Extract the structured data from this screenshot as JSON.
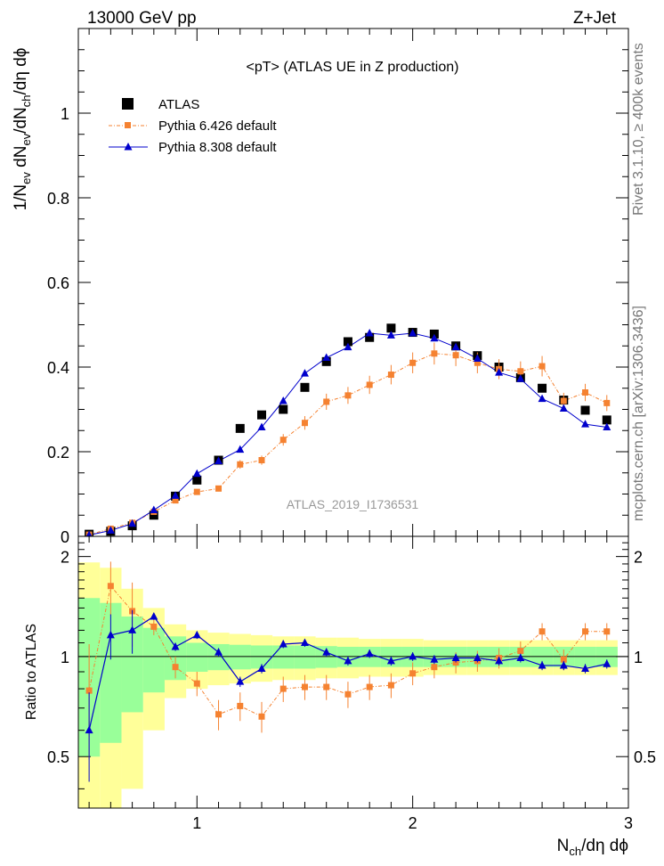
{
  "header": {
    "left": "13000 GeV pp",
    "right": "Z+Jet"
  },
  "side_labels": {
    "top": "Rivet 3.1.10, ≥ 400k events",
    "bottom": "mcplots.cern.ch [arXiv:1306.3436]"
  },
  "watermark": "ATLAS_2019_I1736531",
  "colors": {
    "atlas": "#000000",
    "py6": "#f58231",
    "py8": "#0000cc",
    "band_inner": "#99ff99",
    "band_outer": "#ffff99"
  },
  "chart_data": [
    {
      "type": "scatter",
      "title": "<pT> (ATLAS UE in Z production)",
      "ylabel": {
        "p1": "1/N",
        "s1": "ev",
        "p2": " dN",
        "s2": "ev",
        "p3": "/dN",
        "s3": "ch",
        "p4": "/dη dϕ"
      },
      "xlim": [
        0.45,
        3.0
      ],
      "ylim": [
        0,
        1.2
      ],
      "xticks": [
        1,
        2,
        3
      ],
      "yticks": [
        0,
        0.2,
        0.4,
        0.6,
        0.8,
        1
      ],
      "ytick_labels": [
        "0",
        "0.2",
        "0.4",
        "0.6",
        "0.8",
        "1"
      ],
      "legend_position": "top-left",
      "x": [
        0.5,
        0.6,
        0.7,
        0.8,
        0.9,
        1.0,
        1.1,
        1.2,
        1.3,
        1.4,
        1.5,
        1.6,
        1.7,
        1.8,
        1.9,
        2.0,
        2.1,
        2.2,
        2.3,
        2.4,
        2.5,
        2.6,
        2.7,
        2.8,
        2.9
      ],
      "series": [
        {
          "name": "ATLAS",
          "marker": "square",
          "values": [
            0.005,
            0.012,
            0.025,
            0.05,
            0.095,
            0.133,
            0.18,
            0.255,
            0.287,
            0.3,
            0.352,
            0.413,
            0.46,
            0.47,
            0.492,
            0.482,
            0.478,
            0.45,
            0.427,
            0.4,
            0.375,
            0.35,
            0.322,
            0.298,
            0.275
          ]
        },
        {
          "name": "Pythia 6.426 default",
          "marker": "small-square",
          "values": [
            0.004,
            0.018,
            0.032,
            0.058,
            0.085,
            0.105,
            0.113,
            0.17,
            0.18,
            0.228,
            0.268,
            0.318,
            0.333,
            0.358,
            0.382,
            0.41,
            0.432,
            0.428,
            0.41,
            0.395,
            0.39,
            0.402,
            0.32,
            0.34,
            0.315
          ]
        },
        {
          "name": "Pythia 8.308 default",
          "marker": "triangle",
          "values": [
            0.003,
            0.014,
            0.03,
            0.062,
            0.096,
            0.148,
            0.178,
            0.205,
            0.258,
            0.32,
            0.385,
            0.422,
            0.447,
            0.48,
            0.475,
            0.48,
            0.468,
            0.447,
            0.42,
            0.387,
            0.372,
            0.325,
            0.302,
            0.265,
            0.258
          ]
        }
      ]
    },
    {
      "type": "scatter",
      "ylabel": "Ratio to ATLAS",
      "xlabel": {
        "p1": "N",
        "s1": "ch",
        "p2": "/dη dϕ"
      },
      "xlim": [
        0.45,
        3.0
      ],
      "ylim": [
        0.35,
        2.3
      ],
      "xticks": [
        1,
        2,
        3
      ],
      "yticks": [
        0.5,
        1,
        2
      ],
      "ytick_labels": [
        "0.5",
        "1",
        "2"
      ],
      "x": [
        0.5,
        0.6,
        0.7,
        0.8,
        0.9,
        1.0,
        1.1,
        1.2,
        1.3,
        1.4,
        1.5,
        1.6,
        1.7,
        1.8,
        1.9,
        2.0,
        2.1,
        2.2,
        2.3,
        2.4,
        2.5,
        2.6,
        2.7,
        2.8,
        2.9
      ],
      "band_inner": [
        0.5,
        0.45,
        0.32,
        0.22,
        0.15,
        0.1,
        0.09,
        0.085,
        0.08,
        0.08,
        0.08,
        0.075,
        0.07,
        0.07,
        0.07,
        0.07,
        0.07,
        0.07,
        0.07,
        0.07,
        0.07,
        0.07,
        0.07,
        0.07,
        0.07
      ],
      "band_outer": [
        0.92,
        0.85,
        0.6,
        0.4,
        0.25,
        0.2,
        0.18,
        0.17,
        0.16,
        0.15,
        0.15,
        0.14,
        0.14,
        0.13,
        0.13,
        0.13,
        0.12,
        0.12,
        0.12,
        0.12,
        0.12,
        0.12,
        0.12,
        0.12,
        0.12
      ],
      "series": [
        {
          "name": "Pythia 6.426 default",
          "values": [
            0.79,
            1.63,
            1.37,
            1.23,
            0.93,
            0.83,
            0.67,
            0.71,
            0.66,
            0.8,
            0.81,
            0.81,
            0.77,
            0.81,
            0.82,
            0.89,
            0.93,
            0.96,
            0.97,
            0.99,
            1.04,
            1.19,
            0.98,
            1.19,
            1.19
          ]
        },
        {
          "name": "Pythia 8.308 default",
          "values": [
            0.6,
            1.16,
            1.2,
            1.32,
            1.07,
            1.16,
            1.03,
            0.84,
            0.92,
            1.09,
            1.1,
            1.03,
            0.97,
            1.02,
            0.97,
            1.0,
            0.98,
            0.99,
            0.99,
            0.97,
            0.99,
            0.94,
            0.94,
            0.92,
            0.95
          ]
        }
      ]
    }
  ]
}
